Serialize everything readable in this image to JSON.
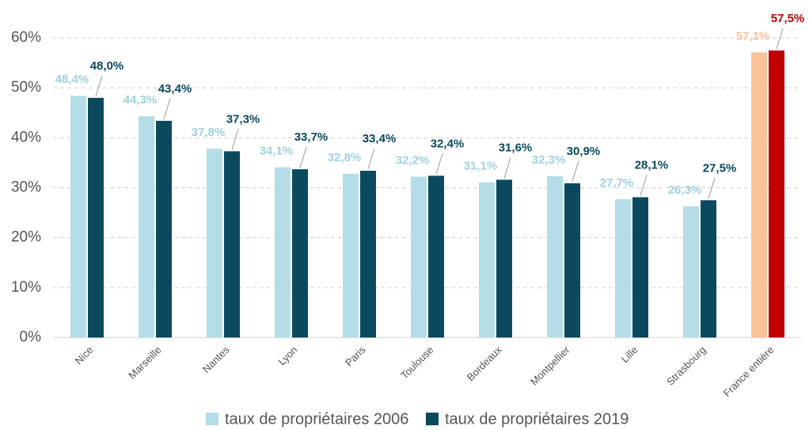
{
  "chart_data": {
    "type": "bar",
    "categories": [
      "Nice",
      "Marseille",
      "Nantes",
      "Lyon",
      "Paris",
      "Toulouse",
      "Bordeaux",
      "Montpellier",
      "Lille",
      "Strasbourg",
      "France entière"
    ],
    "series": [
      {
        "name": "taux de propriétaires 2006",
        "color": "#b5dde8",
        "colors": [
          "#b5dde8",
          "#b5dde8",
          "#b5dde8",
          "#b5dde8",
          "#b5dde8",
          "#b5dde8",
          "#b5dde8",
          "#b5dde8",
          "#b5dde8",
          "#b5dde8",
          "#f9c39a"
        ],
        "values": [
          48.4,
          44.3,
          37.8,
          34.1,
          32.8,
          32.2,
          31.1,
          32.3,
          27.7,
          26.3,
          57.1
        ],
        "value_labels": [
          "48,4%",
          "44,3%",
          "37,8%",
          "34,1%",
          "32,8%",
          "32,2%",
          "31,1%",
          "32,3%",
          "27,7%",
          "26,3%",
          "57,1%"
        ]
      },
      {
        "name": "taux de propriétaires 2019",
        "color": "#0b4a5e",
        "colors": [
          "#0b4a5e",
          "#0b4a5e",
          "#0b4a5e",
          "#0b4a5e",
          "#0b4a5e",
          "#0b4a5e",
          "#0b4a5e",
          "#0b4a5e",
          "#0b4a5e",
          "#0b4a5e",
          "#c00000"
        ],
        "values": [
          48.0,
          43.4,
          37.3,
          33.7,
          33.4,
          32.4,
          31.6,
          30.9,
          28.1,
          27.5,
          57.5
        ],
        "value_labels": [
          "48,0%",
          "43,4%",
          "37,3%",
          "33,7%",
          "33,4%",
          "32,4%",
          "31,6%",
          "30,9%",
          "28,1%",
          "27,5%",
          "57,5%"
        ]
      }
    ],
    "ylim": [
      0,
      60
    ],
    "yticks": [
      {
        "value": 0,
        "label": "0%"
      },
      {
        "value": 10,
        "label": "10%"
      },
      {
        "value": 20,
        "label": "20%"
      },
      {
        "value": 30,
        "label": "30%"
      },
      {
        "value": 40,
        "label": "40%"
      },
      {
        "value": 50,
        "label": "50%"
      },
      {
        "value": 60,
        "label": "60%"
      }
    ],
    "grid": true,
    "legend": "bottom"
  }
}
